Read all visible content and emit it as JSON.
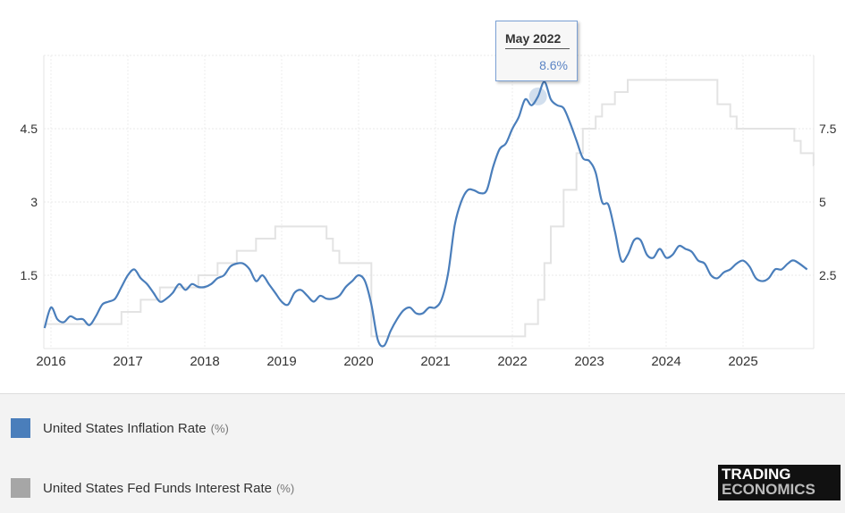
{
  "chart_data": {
    "type": "line",
    "x_tick_labels": [
      "2016",
      "2017",
      "2018",
      "2019",
      "2020",
      "2021",
      "2022",
      "2023",
      "2024",
      "2025"
    ],
    "left_axis": {
      "ticks": [
        "1.5",
        "3",
        "4.5"
      ],
      "range": [
        0,
        6
      ]
    },
    "right_axis": {
      "ticks": [
        "2.5",
        "5",
        "7.5"
      ],
      "range": [
        0,
        10
      ]
    },
    "grid": true,
    "legend_placement": "bottom",
    "series": [
      {
        "name": "United States Inflation Rate",
        "unit": "(%)",
        "axis": "right",
        "color": "#4a7ebb",
        "points": [
          [
            "2015-12",
            0.7
          ],
          [
            "2016-01",
            1.4
          ],
          [
            "2016-02",
            1.0
          ],
          [
            "2016-03",
            0.9
          ],
          [
            "2016-04",
            1.1
          ],
          [
            "2016-05",
            1.0
          ],
          [
            "2016-06",
            1.0
          ],
          [
            "2016-07",
            0.8
          ],
          [
            "2016-08",
            1.1
          ],
          [
            "2016-09",
            1.5
          ],
          [
            "2016-10",
            1.6
          ],
          [
            "2016-11",
            1.7
          ],
          [
            "2016-12",
            2.1
          ],
          [
            "2017-01",
            2.5
          ],
          [
            "2017-02",
            2.7
          ],
          [
            "2017-03",
            2.4
          ],
          [
            "2017-04",
            2.2
          ],
          [
            "2017-05",
            1.9
          ],
          [
            "2017-06",
            1.6
          ],
          [
            "2017-07",
            1.7
          ],
          [
            "2017-08",
            1.9
          ],
          [
            "2017-09",
            2.2
          ],
          [
            "2017-10",
            2.0
          ],
          [
            "2017-11",
            2.2
          ],
          [
            "2017-12",
            2.1
          ],
          [
            "2018-01",
            2.1
          ],
          [
            "2018-02",
            2.2
          ],
          [
            "2018-03",
            2.4
          ],
          [
            "2018-04",
            2.5
          ],
          [
            "2018-05",
            2.8
          ],
          [
            "2018-06",
            2.9
          ],
          [
            "2018-07",
            2.9
          ],
          [
            "2018-08",
            2.7
          ],
          [
            "2018-09",
            2.3
          ],
          [
            "2018-10",
            2.5
          ],
          [
            "2018-11",
            2.2
          ],
          [
            "2018-12",
            1.9
          ],
          [
            "2019-01",
            1.6
          ],
          [
            "2019-02",
            1.5
          ],
          [
            "2019-03",
            1.9
          ],
          [
            "2019-04",
            2.0
          ],
          [
            "2019-05",
            1.8
          ],
          [
            "2019-06",
            1.6
          ],
          [
            "2019-07",
            1.8
          ],
          [
            "2019-08",
            1.7
          ],
          [
            "2019-09",
            1.7
          ],
          [
            "2019-10",
            1.8
          ],
          [
            "2019-11",
            2.1
          ],
          [
            "2019-12",
            2.3
          ],
          [
            "2020-01",
            2.5
          ],
          [
            "2020-02",
            2.3
          ],
          [
            "2020-03",
            1.5
          ],
          [
            "2020-04",
            0.3
          ],
          [
            "2020-05",
            0.1
          ],
          [
            "2020-06",
            0.6
          ],
          [
            "2020-07",
            1.0
          ],
          [
            "2020-08",
            1.3
          ],
          [
            "2020-09",
            1.4
          ],
          [
            "2020-10",
            1.2
          ],
          [
            "2020-11",
            1.2
          ],
          [
            "2020-12",
            1.4
          ],
          [
            "2021-01",
            1.4
          ],
          [
            "2021-02",
            1.7
          ],
          [
            "2021-03",
            2.6
          ],
          [
            "2021-04",
            4.2
          ],
          [
            "2021-05",
            5.0
          ],
          [
            "2021-06",
            5.4
          ],
          [
            "2021-07",
            5.4
          ],
          [
            "2021-08",
            5.3
          ],
          [
            "2021-09",
            5.4
          ],
          [
            "2021-10",
            6.2
          ],
          [
            "2021-11",
            6.8
          ],
          [
            "2021-12",
            7.0
          ],
          [
            "2022-01",
            7.5
          ],
          [
            "2022-02",
            7.9
          ],
          [
            "2022-03",
            8.5
          ],
          [
            "2022-04",
            8.3
          ],
          [
            "2022-05",
            8.6
          ],
          [
            "2022-06",
            9.1
          ],
          [
            "2022-07",
            8.5
          ],
          [
            "2022-08",
            8.3
          ],
          [
            "2022-09",
            8.2
          ],
          [
            "2022-10",
            7.7
          ],
          [
            "2022-11",
            7.1
          ],
          [
            "2022-12",
            6.5
          ],
          [
            "2023-01",
            6.4
          ],
          [
            "2023-02",
            6.0
          ],
          [
            "2023-03",
            5.0
          ],
          [
            "2023-04",
            4.9
          ],
          [
            "2023-05",
            4.0
          ],
          [
            "2023-06",
            3.0
          ],
          [
            "2023-07",
            3.2
          ],
          [
            "2023-08",
            3.7
          ],
          [
            "2023-09",
            3.7
          ],
          [
            "2023-10",
            3.2
          ],
          [
            "2023-11",
            3.1
          ],
          [
            "2023-12",
            3.4
          ],
          [
            "2024-01",
            3.1
          ],
          [
            "2024-02",
            3.2
          ],
          [
            "2024-03",
            3.5
          ],
          [
            "2024-04",
            3.4
          ],
          [
            "2024-05",
            3.3
          ],
          [
            "2024-06",
            3.0
          ],
          [
            "2024-07",
            2.9
          ],
          [
            "2024-08",
            2.5
          ],
          [
            "2024-09",
            2.4
          ],
          [
            "2024-10",
            2.6
          ],
          [
            "2024-11",
            2.7
          ],
          [
            "2024-12",
            2.9
          ],
          [
            "2025-01",
            3.0
          ],
          [
            "2025-02",
            2.8
          ],
          [
            "2025-03",
            2.4
          ],
          [
            "2025-04",
            2.3
          ],
          [
            "2025-05",
            2.4
          ],
          [
            "2025-06",
            2.7
          ],
          [
            "2025-07",
            2.7
          ],
          [
            "2025-08",
            2.9
          ],
          [
            "2025-09",
            3.0
          ],
          [
            "2025-11",
            2.7
          ]
        ]
      },
      {
        "name": "United States Fed Funds Interest Rate",
        "unit": "(%)",
        "axis": "left",
        "color": "#e6e6e6",
        "points": [
          [
            "2015-12",
            0.5
          ],
          [
            "2016-12",
            0.75
          ],
          [
            "2017-03",
            1.0
          ],
          [
            "2017-06",
            1.25
          ],
          [
            "2017-12",
            1.5
          ],
          [
            "2018-03",
            1.75
          ],
          [
            "2018-06",
            2.0
          ],
          [
            "2018-09",
            2.25
          ],
          [
            "2018-12",
            2.5
          ],
          [
            "2019-08",
            2.25
          ],
          [
            "2019-09",
            2.0
          ],
          [
            "2019-10",
            1.75
          ],
          [
            "2020-03",
            0.25
          ],
          [
            "2022-03",
            0.5
          ],
          [
            "2022-05",
            1.0
          ],
          [
            "2022-06",
            1.75
          ],
          [
            "2022-07",
            2.5
          ],
          [
            "2022-09",
            3.25
          ],
          [
            "2022-11",
            4.0
          ],
          [
            "2022-12",
            4.5
          ],
          [
            "2023-02",
            4.75
          ],
          [
            "2023-03",
            5.0
          ],
          [
            "2023-05",
            5.25
          ],
          [
            "2023-07",
            5.5
          ],
          [
            "2024-09",
            5.0
          ],
          [
            "2024-11",
            4.75
          ],
          [
            "2024-12",
            4.5
          ],
          [
            "2025-09",
            4.25
          ],
          [
            "2025-10",
            4.0
          ],
          [
            "2025-12",
            3.75
          ]
        ]
      }
    ],
    "tooltip": {
      "title": "May 2022",
      "value": "8.6%",
      "date": "2022-05"
    }
  },
  "legend": [
    {
      "label": "United States Inflation Rate",
      "unit": "(%)",
      "color": "#4a7ebb"
    },
    {
      "label": "United States Fed Funds Interest Rate",
      "unit": "(%)",
      "color": "#a6a6a6"
    }
  ],
  "logo": {
    "line1": "TRADING",
    "line2": "ECONOMICS"
  }
}
